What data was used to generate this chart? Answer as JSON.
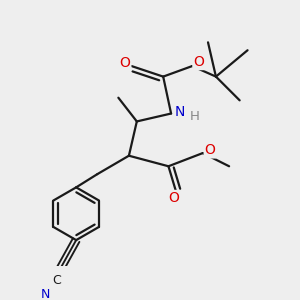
{
  "background_color": "#eeeeee",
  "bond_color": "#1a1a1a",
  "atom_colors": {
    "O": "#dd0000",
    "N": "#0000cc",
    "C": "#1a1a1a",
    "H": "#888888"
  },
  "bond_width": 1.6,
  "figsize": [
    3.0,
    3.0
  ],
  "dpi": 100,
  "xlim": [
    0,
    10
  ],
  "ylim": [
    0,
    10
  ]
}
